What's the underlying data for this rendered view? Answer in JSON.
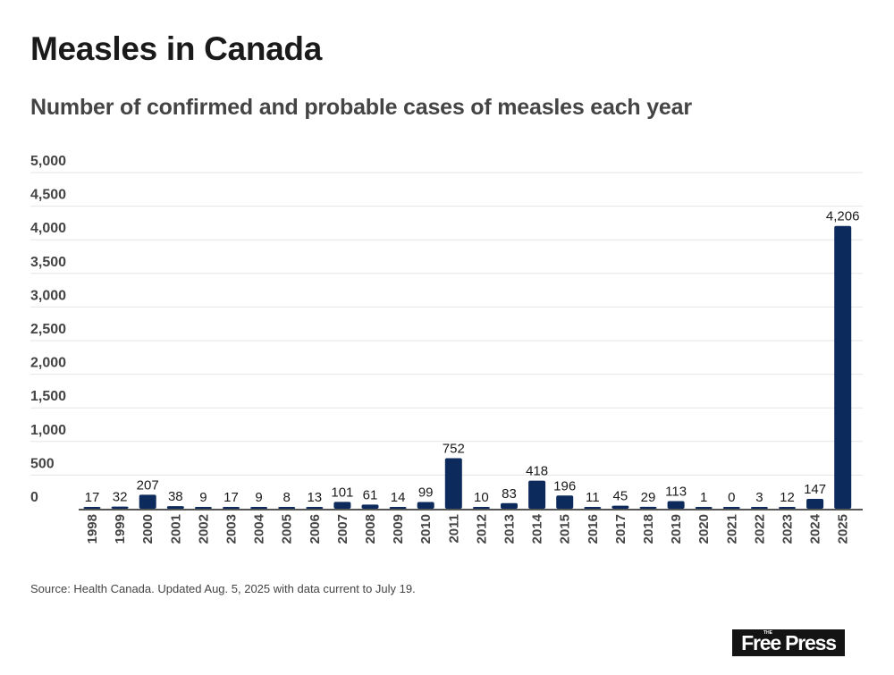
{
  "header": {
    "title": "Measles in Canada",
    "subtitle": "Number of confirmed and probable cases of measles each year"
  },
  "footer": {
    "source": "Source: Health Canada. Updated Aug. 5, 2025 with data current to July 19.",
    "logo_small": "THE",
    "logo_text": "Free Press"
  },
  "colors": {
    "bar": "#0d2a5c",
    "grid": "#e6e6e6",
    "axis": "#555555",
    "text": "#1a1a1a",
    "tick": "#444444"
  },
  "chart_data": {
    "type": "bar",
    "title": "Measles in Canada",
    "subtitle": "Number of confirmed and probable cases of measles each year",
    "xlabel": "",
    "ylabel": "",
    "ylim": [
      0,
      5000
    ],
    "grid": true,
    "yticks": [
      0,
      500,
      1000,
      1500,
      2000,
      2500,
      3000,
      3500,
      4000,
      4500,
      5000
    ],
    "ytick_labels": [
      "0",
      "500",
      "1,000",
      "1,500",
      "2,000",
      "2,500",
      "3,000",
      "3,500",
      "4,000",
      "4,500",
      "5,000"
    ],
    "categories": [
      "1998",
      "1999",
      "2000",
      "2001",
      "2002",
      "2003",
      "2004",
      "2005",
      "2006",
      "2007",
      "2008",
      "2009",
      "2010",
      "2011",
      "2012",
      "2013",
      "2014",
      "2015",
      "2016",
      "2017",
      "2018",
      "2019",
      "2020",
      "2021",
      "2022",
      "2023",
      "2024",
      "2025"
    ],
    "values": [
      17,
      32,
      207,
      38,
      9,
      17,
      9,
      8,
      13,
      101,
      61,
      14,
      99,
      752,
      10,
      83,
      418,
      196,
      11,
      45,
      29,
      113,
      1,
      0,
      3,
      12,
      147,
      4206
    ],
    "data_labels": [
      "17",
      "32",
      "207",
      "38",
      "9",
      "17",
      "9",
      "8",
      "13",
      "101",
      "61",
      "14",
      "99",
      "752",
      "10",
      "83",
      "418",
      "196",
      "11",
      "45",
      "29",
      "113",
      "1",
      "0",
      "3",
      "12",
      "147",
      "4,206"
    ]
  }
}
